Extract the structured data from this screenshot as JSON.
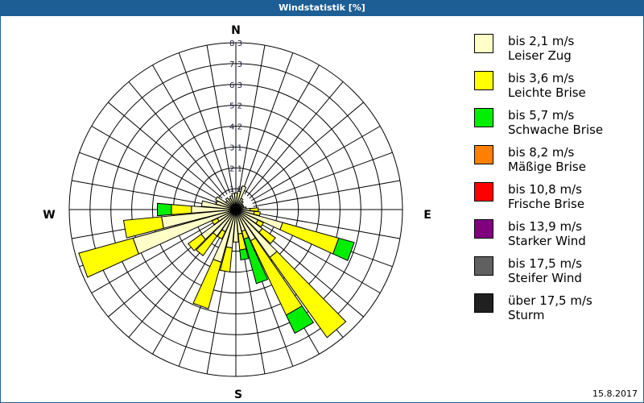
{
  "title": "Windstatistik [%]",
  "date": "15.8.2017",
  "compass": {
    "n": "N",
    "e": "E",
    "s": "S",
    "w": "W"
  },
  "legend": [
    {
      "range": "bis 2,1 m/s",
      "name": "Leiser Zug",
      "color": "#ffffc8"
    },
    {
      "range": "bis 3,6 m/s",
      "name": "Leichte Brise",
      "color": "#ffff00"
    },
    {
      "range": "bis 5,7 m/s",
      "name": "Schwache Brise",
      "color": "#00ee00"
    },
    {
      "range": "bis 8,2 m/s",
      "name": "Mäßige Brise",
      "color": "#ff8000"
    },
    {
      "range": "bis 10,8 m/s",
      "name": "Frische Brise",
      "color": "#ff0000"
    },
    {
      "range": "bis 13,9 m/s",
      "name": "Starker Wind",
      "color": "#800080"
    },
    {
      "range": "bis 17,5 m/s",
      "name": "Steifer Wind",
      "color": "#606060"
    },
    {
      "range": "über 17,5 m/s",
      "name": "Sturm",
      "color": "#202020"
    }
  ],
  "chart_data": {
    "type": "wind_rose",
    "title": "Windstatistik [%]",
    "unit": "%",
    "ring_labels": [
      "1,0",
      "2,1",
      "3,1",
      "4,2",
      "5,2",
      "6,3",
      "7,3",
      "8,3"
    ],
    "rmax": 8.3,
    "sector_width_deg": 10,
    "series_names": [
      "bis 2,1 m/s",
      "bis 3,6 m/s",
      "bis 5,7 m/s"
    ],
    "sectors": [
      {
        "dir": 0,
        "values": [
          0.7,
          0.0,
          0.0
        ]
      },
      {
        "dir": 10,
        "values": [
          0.8,
          0.0,
          0.0
        ]
      },
      {
        "dir": 20,
        "values": [
          1.1,
          0.0,
          0.0
        ]
      },
      {
        "dir": 30,
        "values": [
          0.5,
          0.0,
          0.0
        ]
      },
      {
        "dir": 40,
        "values": [
          0.4,
          0.0,
          0.0
        ]
      },
      {
        "dir": 50,
        "values": [
          0.3,
          0.0,
          0.0
        ]
      },
      {
        "dir": 60,
        "values": [
          0.3,
          0.0,
          0.0
        ]
      },
      {
        "dir": 70,
        "values": [
          0.3,
          0.0,
          0.0
        ]
      },
      {
        "dir": 80,
        "values": [
          0.4,
          0.0,
          0.0
        ]
      },
      {
        "dir": 90,
        "values": [
          0.6,
          0.4,
          0.0
        ]
      },
      {
        "dir": 100,
        "values": [
          0.8,
          0.3,
          0.0
        ]
      },
      {
        "dir": 110,
        "values": [
          2.3,
          2.9,
          0.8
        ]
      },
      {
        "dir": 120,
        "values": [
          1.1,
          0.3,
          0.0
        ]
      },
      {
        "dir": 130,
        "values": [
          1.5,
          0.8,
          0.0
        ]
      },
      {
        "dir": 140,
        "values": [
          2.8,
          4.9,
          0.0
        ]
      },
      {
        "dir": 150,
        "values": [
          1.6,
          4.1,
          1.0
        ]
      },
      {
        "dir": 160,
        "values": [
          1.0,
          0.4,
          2.3
        ]
      },
      {
        "dir": 170,
        "values": [
          1.1,
          0.8,
          0.5
        ]
      },
      {
        "dir": 180,
        "values": [
          1.5,
          0.0,
          0.0
        ]
      },
      {
        "dir": 190,
        "values": [
          1.8,
          1.2,
          0.0
        ]
      },
      {
        "dir": 200,
        "values": [
          2.6,
          2.4,
          0.0
        ]
      },
      {
        "dir": 210,
        "values": [
          1.1,
          0.4,
          0.0
        ]
      },
      {
        "dir": 220,
        "values": [
          1.5,
          1.2,
          0.0
        ]
      },
      {
        "dir": 230,
        "values": [
          2.0,
          0.8,
          0.0
        ]
      },
      {
        "dir": 240,
        "values": [
          0.9,
          0.3,
          0.0
        ]
      },
      {
        "dir": 250,
        "values": [
          5.2,
          2.8,
          0.0
        ]
      },
      {
        "dir": 260,
        "values": [
          3.6,
          1.9,
          0.0
        ]
      },
      {
        "dir": 270,
        "values": [
          2.1,
          1.0,
          0.7
        ]
      },
      {
        "dir": 280,
        "values": [
          1.6,
          0.0,
          0.0
        ]
      },
      {
        "dir": 290,
        "values": [
          0.9,
          0.0,
          0.0
        ]
      },
      {
        "dir": 300,
        "values": [
          1.0,
          0.0,
          0.0
        ]
      },
      {
        "dir": 310,
        "values": [
          0.5,
          0.0,
          0.0
        ]
      },
      {
        "dir": 320,
        "values": [
          0.6,
          0.0,
          0.0
        ]
      },
      {
        "dir": 330,
        "values": [
          0.5,
          0.0,
          0.0
        ]
      },
      {
        "dir": 340,
        "values": [
          0.6,
          0.0,
          0.0
        ]
      },
      {
        "dir": 350,
        "values": [
          0.7,
          0.0,
          0.0
        ]
      }
    ]
  }
}
